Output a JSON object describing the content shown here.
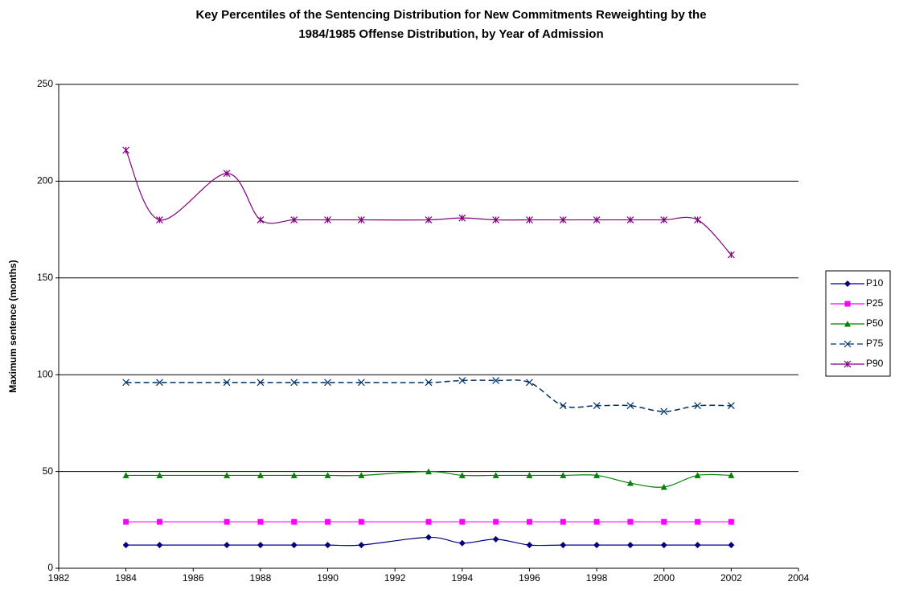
{
  "chart_data": {
    "type": "line",
    "title": [
      "Key Percentiles of the Sentencing Distribution for New Commitments Reweighting by the",
      "1984/1985 Offense Distribution, by Year of Admission"
    ],
    "y_label": "Maximum sentence (months)",
    "x": [
      1984,
      1985,
      1987,
      1988,
      1989,
      1990,
      1991,
      1993,
      1994,
      1995,
      1996,
      1997,
      1998,
      1999,
      2000,
      2001,
      2002
    ],
    "xlim": [
      1982,
      2004
    ],
    "xticks": [
      1982,
      1984,
      1986,
      1988,
      1990,
      1992,
      1994,
      1996,
      1998,
      2000,
      2002,
      2004
    ],
    "ylim": [
      0,
      250
    ],
    "yticks": [
      0,
      50,
      100,
      150,
      200,
      250
    ],
    "grid": true,
    "legend": "right",
    "smooth": true,
    "series": [
      {
        "name": "P10",
        "color": "#000080",
        "marker": "diamond",
        "values": [
          12,
          12,
          12,
          12,
          12,
          12,
          12,
          16,
          13,
          15,
          12,
          12,
          12,
          12,
          12,
          12,
          12
        ]
      },
      {
        "name": "P25",
        "color": "#ff00ff",
        "marker": "square",
        "values": [
          24,
          24,
          24,
          24,
          24,
          24,
          24,
          24,
          24,
          24,
          24,
          24,
          24,
          24,
          24,
          24,
          24
        ]
      },
      {
        "name": "P50",
        "color": "#008000",
        "marker": "triangle",
        "values": [
          48,
          48,
          48,
          48,
          48,
          48,
          48,
          50,
          48,
          48,
          48,
          48,
          48,
          44,
          42,
          48,
          48
        ]
      },
      {
        "name": "P75",
        "color": "#003366",
        "marker": "x",
        "dashed": true,
        "values": [
          96,
          96,
          96,
          96,
          96,
          96,
          96,
          96,
          97,
          97,
          96,
          84,
          84,
          84,
          81,
          84,
          84
        ]
      },
      {
        "name": "P90",
        "color": "#800080",
        "marker": "star",
        "values": [
          216,
          180,
          204,
          180,
          180,
          180,
          180,
          180,
          181,
          180,
          180,
          180,
          180,
          180,
          180,
          180,
          162
        ]
      }
    ]
  }
}
